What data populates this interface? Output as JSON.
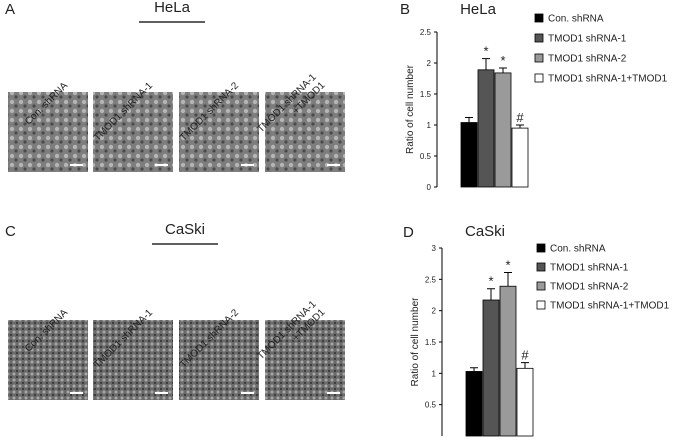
{
  "sections": [
    {
      "label": "A",
      "title": "HeLa",
      "images": [
        [
          "Con. shRNA"
        ],
        [
          "TMOD1 shRNA-1"
        ],
        [
          "TMOD1 shRNA-2"
        ],
        [
          "TMOD1 shRNA-1",
          "+TMOD1"
        ]
      ]
    },
    {
      "label": "C",
      "title": "CaSki",
      "images": [
        [
          "Con. shRNA"
        ],
        [
          "TMOD1 shRNA-1"
        ],
        [
          "TMOD1 shRNA-2"
        ],
        [
          "TMOD1 shRNA-1",
          "+TMOD1"
        ]
      ]
    }
  ],
  "chart_data": [
    {
      "type": "bar",
      "panel_label": "B",
      "title": "HeLa",
      "y_label": "Ratio of cell number",
      "ylim": [
        0,
        2.5
      ],
      "yticks": [
        0,
        0.5,
        1,
        1.5,
        2,
        2.5
      ],
      "series": [
        {
          "name": "Con. shRNA",
          "color": "#000000",
          "values": [
            1.04
          ],
          "errors": [
            0.08
          ]
        },
        {
          "name": "TMOD1 shRNA-1",
          "color": "#555555",
          "values": [
            1.89
          ],
          "errors": [
            0.18
          ],
          "annotation": "*"
        },
        {
          "name": "TMOD1 shRNA-2",
          "color": "#9a9a9a",
          "values": [
            1.84
          ],
          "errors": [
            0.08
          ],
          "annotation": "*"
        },
        {
          "name": "TMOD1 shRNA-1+TMOD1",
          "color": "#ffffff",
          "values": [
            0.95
          ],
          "errors": [
            0.05
          ],
          "annotation": "#"
        }
      ]
    },
    {
      "type": "bar",
      "panel_label": "D",
      "title": "CaSki",
      "y_label": "Ratio of cell number",
      "ylim": [
        0,
        3
      ],
      "yticks": [
        0.5,
        1,
        1.5,
        2,
        2.5,
        3
      ],
      "series": [
        {
          "name": "Con. shRNA",
          "color": "#000000",
          "values": [
            1.03
          ],
          "errors": [
            0.06
          ]
        },
        {
          "name": "TMOD1 shRNA-1",
          "color": "#555555",
          "values": [
            2.17
          ],
          "errors": [
            0.18
          ],
          "annotation": "*"
        },
        {
          "name": "TMOD1 shRNA-2",
          "color": "#9a9a9a",
          "values": [
            2.39
          ],
          "errors": [
            0.22
          ],
          "annotation": "*"
        },
        {
          "name": "TMOD1 shRNA-1+TMOD1",
          "color": "#ffffff",
          "values": [
            1.08
          ],
          "errors": [
            0.09
          ],
          "annotation": "#"
        }
      ]
    }
  ]
}
